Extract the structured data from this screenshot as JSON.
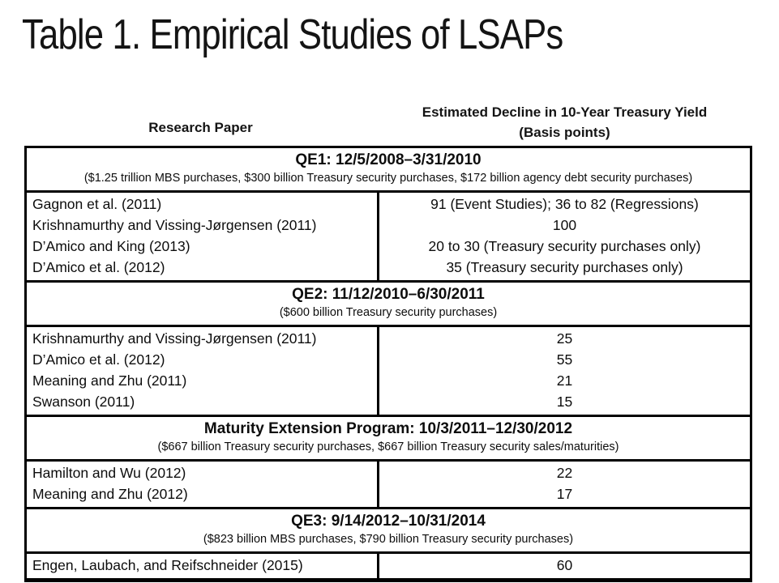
{
  "slide": {
    "title": "Table 1. Empirical Studies of LSAPs"
  },
  "table": {
    "col_headers": {
      "paper": "Research Paper",
      "estimate_line1": "Estimated Decline in 10-Year Treasury Yield",
      "estimate_line2": "(Basis points)"
    },
    "sections": [
      {
        "title": "QE1: 12/5/2008–3/31/2010",
        "subtitle": "($1.25 trillion MBS purchases, $300 billion Treasury security purchases, $172 billion agency debt security purchases)",
        "rows": [
          {
            "paper": "Gagnon et al. (2011)",
            "estimate": "91 (Event Studies); 36 to 82 (Regressions)"
          },
          {
            "paper": "Krishnamurthy and Vissing-Jørgensen (2011)",
            "estimate": "100"
          },
          {
            "paper": "D’Amico and King (2013)",
            "estimate": "20 to 30 (Treasury security purchases only)"
          },
          {
            "paper": "D’Amico et al. (2012)",
            "estimate": "35 (Treasury security purchases only)"
          }
        ]
      },
      {
        "title": "QE2: 11/12/2010–6/30/2011",
        "subtitle": "($600 billion Treasury security purchases)",
        "rows": [
          {
            "paper": "Krishnamurthy and Vissing-Jørgensen (2011)",
            "estimate": "25"
          },
          {
            "paper": "D’Amico et al. (2012)",
            "estimate": "55"
          },
          {
            "paper": "Meaning and Zhu (2011)",
            "estimate": "21"
          },
          {
            "paper": "Swanson (2011)",
            "estimate": "15"
          }
        ]
      },
      {
        "title": "Maturity Extension Program: 10/3/2011–12/30/2012",
        "subtitle": "($667 billion Treasury security purchases, $667 billion Treasury security sales/maturities)",
        "rows": [
          {
            "paper": "Hamilton and Wu (2012)",
            "estimate": "22"
          },
          {
            "paper": "Meaning and Zhu (2012)",
            "estimate": "17"
          }
        ]
      },
      {
        "title": "QE3: 9/14/2012–10/31/2014",
        "subtitle": "($823 billion MBS purchases, $790 billion Treasury security purchases)",
        "rows": [
          {
            "paper": "Engen, Laubach, and Reifschneider (2015)",
            "estimate": "60"
          }
        ]
      }
    ]
  }
}
